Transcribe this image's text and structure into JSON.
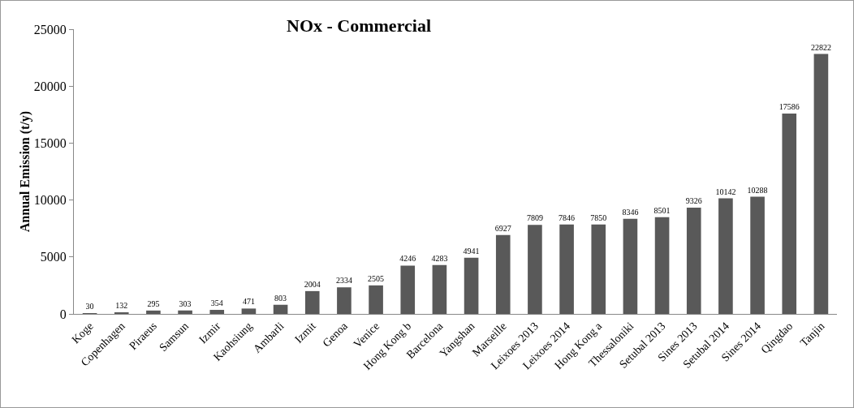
{
  "chart_data": {
    "type": "bar",
    "title": "NOx - Commercial",
    "ylabel": "Annual Emission (t/y)",
    "categories": [
      "Koge",
      "Copenhagen",
      "Piraeus",
      "Samsun",
      "Izmir",
      "Kaohsiung",
      "Ambarli",
      "Izmit",
      "Genoa",
      "Venice",
      "Hong Kong b",
      "Barcelona",
      "Yangshan",
      "Marseille",
      "Leixoes 2013",
      "Leixoes 2014",
      "Hong Kong a",
      "Thessaloniki",
      "Setubal 2013",
      "Sines 2013",
      "Setubal 2014",
      "Sines 2014",
      "Qingdao",
      "Tanjin"
    ],
    "values": [
      30,
      132,
      295,
      303,
      354,
      471,
      803,
      2004,
      2334,
      2505,
      4246,
      4283,
      4941,
      6927,
      7809,
      7846,
      7850,
      8346,
      8501,
      9326,
      10142,
      10288,
      17586,
      22822
    ],
    "color": "#595959",
    "ylim": [
      0,
      25000
    ],
    "yticks": [
      0,
      5000,
      10000,
      15000,
      20000,
      25000
    ],
    "grid": false,
    "data_labels": true
  }
}
